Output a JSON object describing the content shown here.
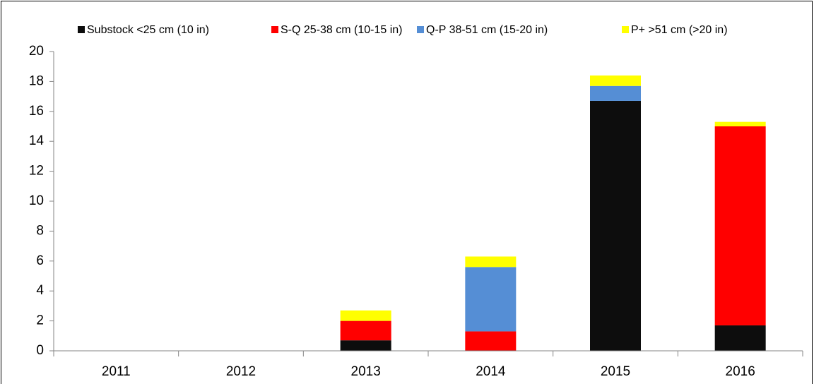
{
  "chart_data": {
    "type": "stacked_bar",
    "categories": [
      "2011",
      "2012",
      "2013",
      "2014",
      "2015",
      "2016"
    ],
    "series": [
      {
        "name": "Substock <25 cm (10 in)",
        "color": "#0d0d0d",
        "values": [
          0,
          0,
          0.7,
          0,
          16.7,
          1.7
        ]
      },
      {
        "name": "S-Q 25-38 cm (10-15 in)",
        "color": "#ff0000",
        "values": [
          0,
          0,
          1.3,
          1.3,
          0,
          13.3
        ]
      },
      {
        "name": "Q-P 38-51 cm (15-20 in)",
        "color": "#558ed5",
        "values": [
          0,
          0,
          0,
          4.3,
          1.0,
          0
        ]
      },
      {
        "name": "P+ >51 cm (>20 in)",
        "color": "#ffff00",
        "values": [
          0,
          0,
          0.7,
          0.7,
          0.7,
          0.3
        ]
      }
    ],
    "ylim": [
      0,
      20
    ],
    "yticks": [
      0,
      2,
      4,
      6,
      8,
      10,
      12,
      14,
      16,
      18,
      20
    ],
    "legend": "top"
  }
}
